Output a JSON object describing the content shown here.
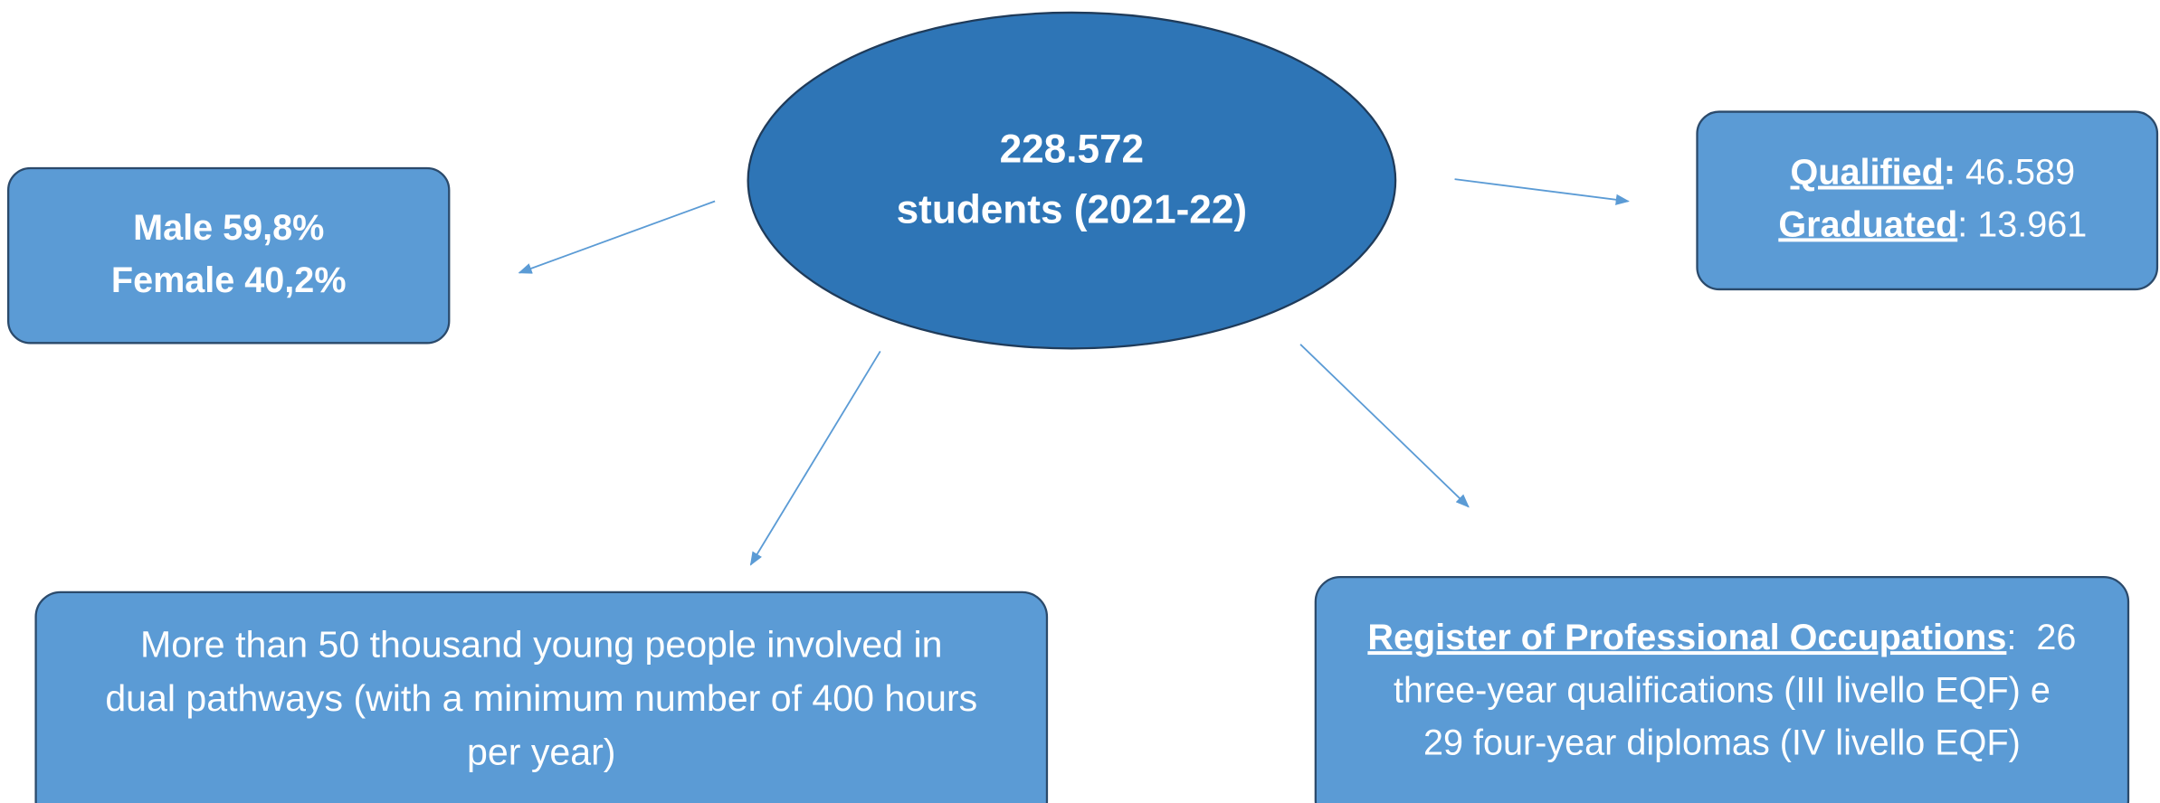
{
  "center": {
    "lines": [
      "228.572",
      "students (2021-22)"
    ]
  },
  "gender": {
    "lines": [
      "Male 59,8%",
      "Female  40,2%"
    ]
  },
  "outcomes": {
    "items": [
      {
        "label": "Qualified",
        "sep": ":",
        "value": " 46.589"
      },
      {
        "label": "Graduated",
        "sep": ":",
        "value": " 13.961"
      }
    ]
  },
  "dual": {
    "lines": [
      "More than 50 thousand young people involved in",
      "dual pathways (with a minimum number of 400 hours",
      "per year)"
    ]
  },
  "register": {
    "label": "Register of Professional Occupations",
    "first": ":  26",
    "lines": [
      "three-year qualifications (III livello EQF) e",
      "29 four-year diplomas (IV livello EQF)"
    ]
  }
}
